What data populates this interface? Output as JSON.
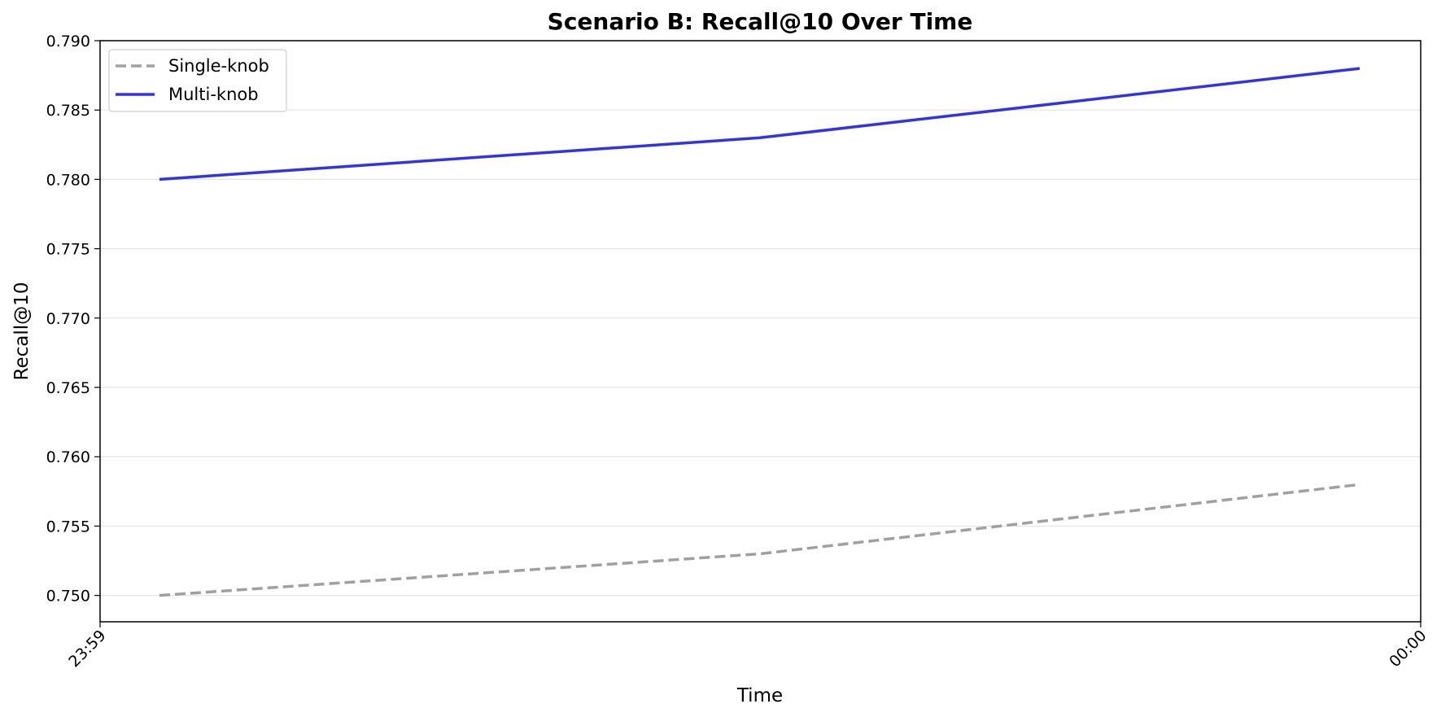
{
  "chart_data": {
    "type": "line",
    "title": "Scenario B: Recall@10 Over Time",
    "xlabel": "Time",
    "ylabel": "Recall@10",
    "x_tick_labels": [
      "23:59",
      "00:00"
    ],
    "y_ticks": [
      "0.750",
      "0.755",
      "0.760",
      "0.765",
      "0.770",
      "0.775",
      "0.780",
      "0.785",
      "0.790"
    ],
    "ylim": [
      0.7481,
      0.79
    ],
    "grid": "horizontal",
    "legend_position": "upper-left",
    "series": [
      {
        "name": "Single-knob",
        "color": "#a0a0a0",
        "style": "dashed",
        "values": [
          0.75,
          0.753,
          0.758
        ]
      },
      {
        "name": "Multi-knob",
        "color": "#3232e6",
        "style": "solid",
        "values": [
          0.78,
          0.783,
          0.788
        ]
      }
    ]
  }
}
